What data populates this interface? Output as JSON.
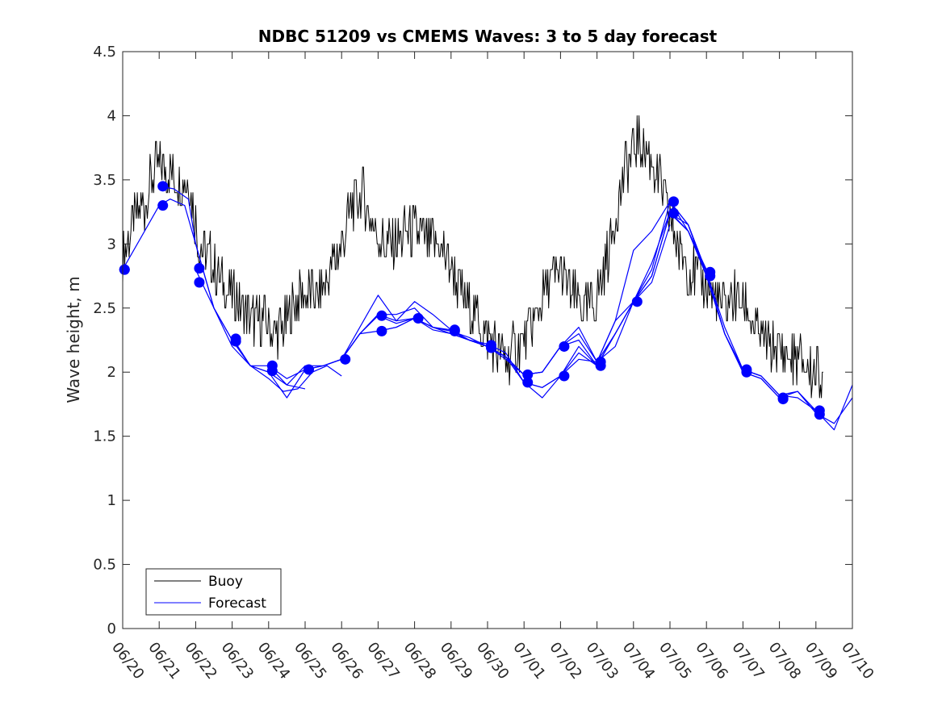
{
  "chart_data": {
    "type": "line",
    "title": "NDBC 51209 vs CMEMS Waves: 3 to 5 day forecast",
    "xlabel": "",
    "ylabel": "Wave height, m",
    "xlim": [
      "06/20",
      "07/10"
    ],
    "ylim": [
      0,
      4.5
    ],
    "x_ticks": [
      "06/20",
      "06/21",
      "06/22",
      "06/23",
      "06/24",
      "06/25",
      "06/26",
      "06/27",
      "06/28",
      "06/29",
      "06/30",
      "07/01",
      "07/02",
      "07/03",
      "07/04",
      "07/05",
      "07/06",
      "07/07",
      "07/08",
      "07/09",
      "07/10"
    ],
    "y_ticks": [
      "0",
      "0.5",
      "1",
      "1.5",
      "2",
      "2.5",
      "3",
      "3.5",
      "4",
      "4.5"
    ],
    "grid": false,
    "legend": {
      "placement": "bottom-left",
      "entries": [
        "Buoy",
        "Forecast"
      ]
    },
    "colors": {
      "buoy": "#000000",
      "forecast": "#0000ff"
    },
    "series": [
      {
        "name": "Buoy",
        "x_days": [
          0.0,
          0.3,
          0.6,
          0.9,
          1.2,
          1.5,
          1.8,
          2.1,
          2.4,
          2.7,
          3.0,
          3.3,
          3.6,
          3.9,
          4.2,
          4.5,
          4.8,
          5.1,
          5.4,
          5.7,
          6.0,
          6.3,
          6.6,
          6.9,
          7.2,
          7.5,
          7.8,
          8.1,
          8.4,
          8.7,
          9.0,
          9.3,
          9.6,
          9.9,
          10.2,
          10.5,
          10.8,
          11.1,
          11.4,
          11.7,
          12.0,
          12.3,
          12.6,
          12.9,
          13.2,
          13.5,
          13.8,
          14.1,
          14.4,
          14.7,
          15.0,
          15.3,
          15.6,
          15.9,
          16.2,
          16.5,
          16.8,
          17.1,
          17.4,
          17.7,
          18.0,
          18.3,
          18.6,
          18.9,
          19.2
        ],
        "values": [
          2.9,
          3.2,
          3.3,
          3.6,
          3.6,
          3.5,
          3.5,
          3.0,
          2.9,
          2.7,
          2.6,
          2.5,
          2.4,
          2.4,
          2.3,
          2.4,
          2.6,
          2.6,
          2.6,
          2.8,
          3.0,
          3.3,
          3.4,
          3.1,
          3.0,
          3.0,
          3.1,
          3.1,
          3.0,
          3.0,
          2.8,
          2.6,
          2.5,
          2.3,
          2.2,
          2.1,
          2.2,
          2.3,
          2.5,
          2.7,
          2.8,
          2.6,
          2.5,
          2.5,
          2.8,
          3.2,
          3.6,
          3.8,
          3.7,
          3.5,
          3.2,
          2.9,
          2.8,
          2.7,
          2.6,
          2.5,
          2.6,
          2.5,
          2.3,
          2.2,
          2.2,
          2.1,
          2.1,
          2.0,
          2.0
        ]
      },
      {
        "name": "Forecast",
        "x_days": [
          0.0,
          0.5,
          1.0,
          1.3,
          1.7,
          2.0,
          2.5,
          3.0,
          3.5,
          4.0,
          4.5,
          5.0
        ],
        "values": [
          2.8,
          3.05,
          3.3,
          3.35,
          3.3,
          3.0,
          2.5,
          2.2,
          2.05,
          2.0,
          1.9,
          1.87
        ]
      },
      {
        "x_days": [
          1.0,
          1.4,
          1.8,
          2.0,
          2.5,
          3.0,
          3.5,
          4.0,
          4.4,
          4.8,
          5.2,
          5.6,
          6.0
        ],
        "values": [
          3.45,
          3.43,
          3.35,
          3.0,
          2.5,
          2.25,
          2.05,
          1.95,
          1.85,
          1.87,
          2.0,
          2.05,
          1.97
        ]
      },
      {
        "x_days": [
          2.0,
          2.5,
          3.0,
          3.5,
          4.0,
          4.5,
          5.0,
          5.5,
          6.0,
          6.5,
          7.0,
          7.5,
          8.0
        ],
        "values": [
          2.8,
          2.5,
          2.25,
          2.05,
          2.05,
          1.9,
          2.05,
          2.05,
          2.1,
          2.3,
          2.45,
          2.4,
          2.42
        ]
      },
      {
        "x_days": [
          3.0,
          3.5,
          4.0,
          4.5,
          5.0,
          5.5,
          6.0,
          6.5,
          7.0,
          7.5,
          8.0,
          8.5,
          9.0
        ],
        "values": [
          2.27,
          2.05,
          2.0,
          1.8,
          2.02,
          2.05,
          2.1,
          2.35,
          2.6,
          2.4,
          2.55,
          2.45,
          2.33
        ]
      },
      {
        "x_days": [
          4.0,
          4.5,
          5.0,
          5.5,
          6.0,
          6.5,
          7.0,
          7.5,
          8.0,
          8.5,
          9.0,
          9.5,
          10.0
        ],
        "values": [
          2.05,
          1.95,
          2.02,
          2.05,
          2.1,
          2.3,
          2.44,
          2.38,
          2.42,
          2.35,
          2.3,
          2.25,
          2.2
        ]
      },
      {
        "x_days": [
          5.0,
          5.5,
          6.0,
          6.5,
          7.0,
          7.5,
          8.0,
          8.5,
          9.0,
          9.5,
          10.0,
          10.5,
          11.0
        ],
        "values": [
          2.02,
          2.05,
          2.1,
          2.3,
          2.32,
          2.35,
          2.42,
          2.33,
          2.3,
          2.25,
          2.2,
          2.1,
          1.98
        ]
      },
      {
        "x_days": [
          6.0,
          6.5,
          7.0,
          7.5,
          8.0,
          8.5,
          9.0,
          9.5,
          10.0,
          10.5,
          11.0,
          11.5,
          12.0
        ],
        "values": [
          2.1,
          2.3,
          2.45,
          2.45,
          2.5,
          2.35,
          2.33,
          2.25,
          2.22,
          2.15,
          1.92,
          1.8,
          1.97
        ]
      },
      {
        "x_days": [
          7.0,
          7.5,
          8.0,
          8.5,
          9.0,
          9.5,
          10.0,
          10.5,
          11.0,
          11.5,
          12.0,
          12.5,
          13.0
        ],
        "values": [
          2.32,
          2.35,
          2.42,
          2.35,
          2.32,
          2.25,
          2.2,
          2.12,
          1.98,
          2.0,
          2.2,
          2.25,
          2.05
        ]
      },
      {
        "x_days": [
          8.0,
          8.5,
          9.0,
          9.5,
          10.0,
          10.5,
          11.0,
          11.5,
          12.0,
          12.5,
          13.0,
          13.5,
          14.0
        ],
        "values": [
          2.42,
          2.35,
          2.32,
          2.27,
          2.2,
          2.12,
          1.92,
          1.88,
          1.97,
          2.1,
          2.08,
          2.3,
          2.55
        ]
      },
      {
        "x_days": [
          9.0,
          9.5,
          10.0,
          10.5,
          11.0,
          11.5,
          12.0,
          12.5,
          13.0,
          13.5,
          14.0,
          14.5,
          15.0
        ],
        "values": [
          2.32,
          2.25,
          2.2,
          2.12,
          1.98,
          2.0,
          2.2,
          2.3,
          2.08,
          2.4,
          2.55,
          2.7,
          3.15
        ]
      },
      {
        "x_days": [
          10.0,
          10.5,
          11.0,
          11.5,
          12.0,
          12.5,
          13.0,
          13.5,
          14.0,
          14.5,
          15.0,
          15.5,
          16.0
        ],
        "values": [
          2.2,
          2.12,
          1.92,
          1.88,
          1.97,
          2.15,
          2.05,
          2.3,
          2.55,
          2.85,
          3.25,
          3.1,
          2.8
        ]
      },
      {
        "x_days": [
          11.0,
          11.5,
          12.0,
          12.5,
          13.0,
          13.5,
          14.0,
          14.5,
          15.0,
          15.5,
          16.0,
          16.5,
          17.0
        ],
        "values": [
          1.98,
          2.0,
          2.2,
          2.35,
          2.08,
          2.4,
          2.95,
          3.1,
          3.33,
          3.1,
          2.78,
          2.3,
          2.02
        ]
      },
      {
        "x_days": [
          12.0,
          12.5,
          13.0,
          13.5,
          14.0,
          14.5,
          15.0,
          15.5,
          16.0,
          16.5,
          17.0,
          17.5,
          18.0
        ],
        "values": [
          1.97,
          2.2,
          2.05,
          2.3,
          2.55,
          2.75,
          3.24,
          3.15,
          2.75,
          2.3,
          2.0,
          1.95,
          1.8
        ]
      },
      {
        "x_days": [
          13.0,
          13.5,
          14.0,
          14.5,
          15.0,
          15.5,
          16.0,
          16.5,
          17.0,
          17.5,
          18.0,
          18.5,
          19.0
        ],
        "values": [
          2.08,
          2.2,
          2.55,
          2.8,
          3.33,
          3.15,
          2.78,
          2.35,
          2.02,
          1.97,
          1.82,
          1.85,
          1.7
        ]
      },
      {
        "x_days": [
          14.0,
          14.5,
          15.0,
          15.5,
          16.0,
          16.5,
          17.0,
          17.5,
          18.0,
          18.5,
          19.0,
          19.5,
          20.0
        ],
        "values": [
          2.55,
          2.75,
          3.24,
          3.1,
          2.75,
          2.3,
          2.0,
          1.95,
          1.8,
          1.85,
          1.68,
          1.6,
          1.8
        ]
      },
      {
        "x_days": [
          15.0,
          15.5,
          16.0,
          16.5,
          17.0,
          17.5,
          18.0,
          18.5,
          19.0,
          19.5,
          20.0
        ],
        "values": [
          3.33,
          3.15,
          2.78,
          2.3,
          2.02,
          1.97,
          1.82,
          1.8,
          1.7,
          1.55,
          1.9
        ]
      }
    ],
    "markers": {
      "x_days": [
        0.05,
        0.05,
        1.1,
        1.1,
        2.1,
        2.1,
        3.1,
        3.1,
        4.1,
        4.1,
        5.1,
        6.1,
        7.1,
        7.1,
        8.1,
        9.1,
        9.1,
        10.1,
        10.1,
        11.1,
        11.1,
        12.1,
        12.1,
        13.1,
        13.1,
        14.1,
        15.1,
        15.1,
        16.1,
        16.1,
        17.1,
        17.1,
        18.1,
        18.1,
        19.1,
        19.1
      ],
      "values": [
        2.8,
        2.8,
        3.45,
        3.3,
        2.81,
        2.7,
        2.26,
        2.24,
        2.05,
        2.01,
        2.02,
        2.1,
        2.44,
        2.32,
        2.42,
        2.33,
        2.32,
        2.21,
        2.19,
        1.98,
        1.92,
        2.2,
        1.97,
        2.08,
        2.05,
        2.55,
        3.33,
        3.24,
        2.78,
        2.75,
        2.02,
        2.0,
        1.8,
        1.79,
        1.7,
        1.67
      ]
    }
  }
}
